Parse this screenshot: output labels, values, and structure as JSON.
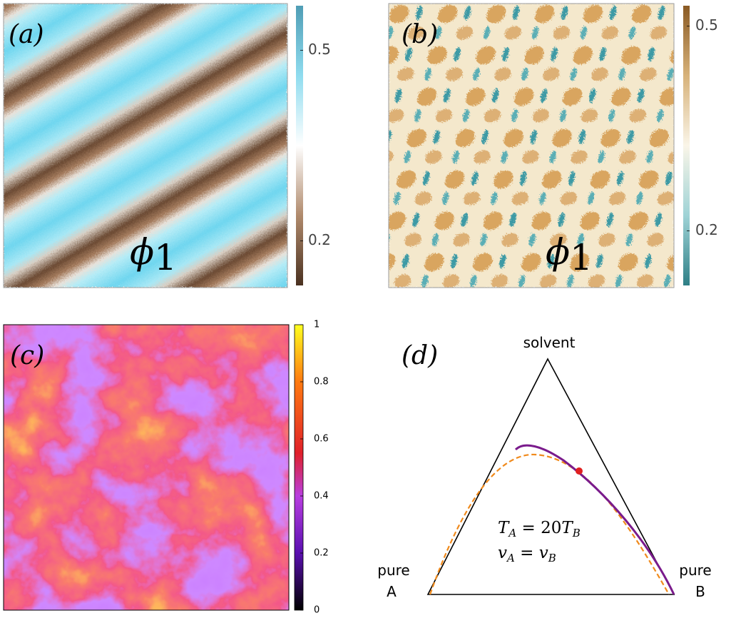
{
  "panels": [
    {
      "label": "(a)",
      "symbol": [
        "ϕ",
        "1"
      ],
      "colorbar": {
        "clim": [
          0.13,
          0.57
        ],
        "ticks": [
          0.2,
          0.5
        ]
      }
    },
    {
      "label": "(b)",
      "symbol": [
        "ϕ",
        "1"
      ],
      "colorbar": {
        "clim": [
          0.12,
          0.53
        ],
        "ticks": [
          0.2,
          0.5
        ]
      }
    },
    {
      "label": "(c)",
      "colorbar": {
        "clim": [
          0,
          1
        ],
        "ticks": [
          0,
          0.2,
          0.4,
          0.6,
          0.8,
          1
        ]
      }
    },
    {
      "label": "(d)",
      "vertices": {
        "top": "solvent",
        "left": [
          "pure",
          "A"
        ],
        "right": [
          "pure",
          "B"
        ]
      },
      "equations": [
        [
          "T",
          "A",
          " = 20",
          "T",
          "B"
        ],
        [
          "v",
          "A",
          " = ",
          "v",
          "B"
        ]
      ]
    }
  ]
}
